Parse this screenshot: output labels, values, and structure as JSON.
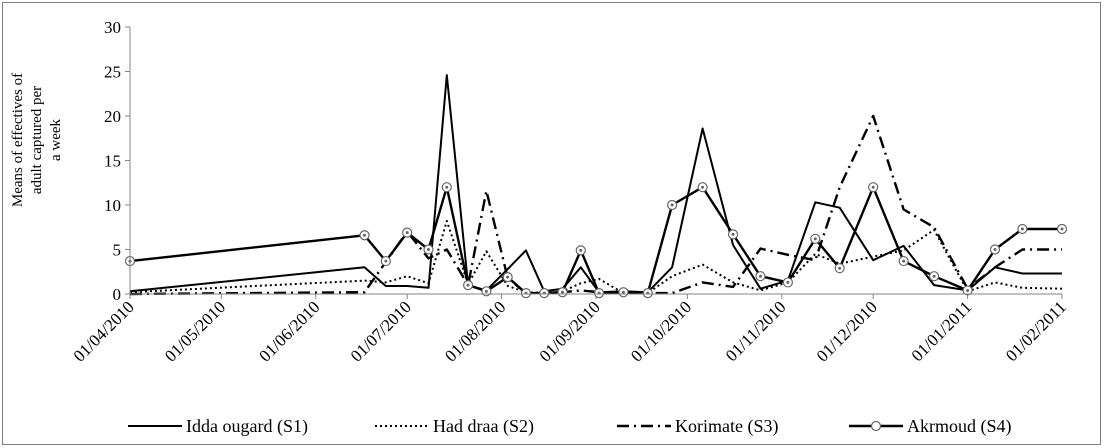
{
  "chart_data": {
    "type": "line",
    "ylabel_lines": [
      "Means of effectives of",
      "adult captured per",
      "a week"
    ],
    "ylim": [
      0,
      30
    ],
    "yticks": [
      0,
      5,
      10,
      15,
      20,
      25,
      30
    ],
    "xlim": [
      "2010-04-01",
      "2011-02-01"
    ],
    "xtick_labels": [
      "01/04/2010",
      "01/05/2010",
      "01/06/2010",
      "01/07/2010",
      "01/08/2010",
      "01/09/2010",
      "01/10/2010",
      "01/11/2010",
      "01/12/2010",
      "01/01/2011",
      "01/02/2011"
    ],
    "grid": false,
    "legend_position": "bottom",
    "series": [
      {
        "name": "Idda ougard (S1)",
        "style": "solid",
        "x": [
          "2010-04-01",
          "2010-06-17",
          "2010-06-24",
          "2010-07-01",
          "2010-07-08",
          "2010-07-14",
          "2010-07-21",
          "2010-07-27",
          "2010-08-03",
          "2010-08-09",
          "2010-08-15",
          "2010-08-21",
          "2010-08-27",
          "2010-09-02",
          "2010-09-10",
          "2010-09-18",
          "2010-09-26",
          "2010-10-06",
          "2010-10-16",
          "2010-10-25",
          "2010-11-03",
          "2010-11-12",
          "2010-11-20",
          "2010-12-01",
          "2010-12-11",
          "2010-12-21",
          "2011-01-01",
          "2011-01-10",
          "2011-01-19",
          "2011-02-01"
        ],
        "y": [
          0.3,
          3.0,
          0.9,
          0.9,
          0.7,
          24.6,
          1.0,
          0.4,
          2.8,
          4.9,
          0.3,
          0.6,
          3.0,
          0.2,
          0.3,
          0.2,
          3.0,
          18.6,
          5.5,
          0.6,
          1.5,
          10.3,
          9.7,
          3.8,
          5.4,
          1.0,
          0.4,
          3.0,
          2.3,
          2.3
        ]
      },
      {
        "name": "Had draa (S2)",
        "style": "dotted",
        "x": [
          "2010-04-01",
          "2010-06-17",
          "2010-06-24",
          "2010-07-01",
          "2010-07-08",
          "2010-07-14",
          "2010-07-21",
          "2010-07-27",
          "2010-08-03",
          "2010-08-09",
          "2010-08-15",
          "2010-08-21",
          "2010-08-27",
          "2010-09-02",
          "2010-09-10",
          "2010-09-18",
          "2010-09-26",
          "2010-10-06",
          "2010-10-16",
          "2010-10-25",
          "2010-11-03",
          "2010-11-12",
          "2010-11-20",
          "2010-12-01",
          "2010-12-11",
          "2010-12-21",
          "2011-01-01",
          "2011-01-10",
          "2011-01-19",
          "2011-02-01"
        ],
        "y": [
          0.2,
          1.5,
          1.3,
          2.0,
          1.2,
          8.2,
          1.1,
          4.8,
          0.9,
          0.2,
          0.1,
          0.3,
          1.2,
          1.7,
          0.1,
          0.1,
          2.0,
          3.3,
          1.3,
          0.4,
          1.3,
          4.5,
          3.4,
          4.2,
          4.9,
          7.2,
          0.3,
          1.3,
          0.7,
          0.6
        ]
      },
      {
        "name": "Korimate (S3)",
        "style": "dashdot",
        "x": [
          "2010-04-01",
          "2010-06-17",
          "2010-06-24",
          "2010-07-01",
          "2010-07-08",
          "2010-07-14",
          "2010-07-21",
          "2010-07-27",
          "2010-08-03",
          "2010-08-09",
          "2010-08-15",
          "2010-08-21",
          "2010-08-27",
          "2010-09-02",
          "2010-09-10",
          "2010-09-18",
          "2010-09-26",
          "2010-10-06",
          "2010-10-16",
          "2010-10-25",
          "2010-11-03",
          "2010-11-12",
          "2010-11-20",
          "2010-12-01",
          "2010-12-11",
          "2010-12-21",
          "2011-01-01",
          "2011-01-10",
          "2011-01-19",
          "2011-02-01"
        ],
        "y": [
          0.0,
          0.2,
          3.6,
          7.0,
          4.0,
          5.0,
          1.0,
          11.6,
          1.8,
          0.1,
          0.1,
          0.2,
          0.4,
          0.2,
          0.1,
          0.1,
          0.1,
          1.3,
          0.8,
          5.1,
          4.4,
          3.8,
          12.0,
          20.0,
          9.5,
          7.5,
          0.6,
          3.0,
          5.0,
          5.0
        ]
      },
      {
        "name": "Akrmoud (S4)",
        "style": "solid-marker",
        "x": [
          "2010-04-01",
          "2010-06-17",
          "2010-06-24",
          "2010-07-01",
          "2010-07-08",
          "2010-07-14",
          "2010-07-21",
          "2010-07-27",
          "2010-08-03",
          "2010-08-09",
          "2010-08-15",
          "2010-08-21",
          "2010-08-27",
          "2010-09-02",
          "2010-09-10",
          "2010-09-18",
          "2010-09-26",
          "2010-10-06",
          "2010-10-16",
          "2010-10-25",
          "2010-11-03",
          "2010-11-12",
          "2010-11-20",
          "2010-12-01",
          "2010-12-11",
          "2010-12-21",
          "2011-01-01",
          "2011-01-10",
          "2011-01-19",
          "2011-02-01"
        ],
        "y": [
          3.7,
          6.6,
          3.7,
          6.9,
          5.0,
          12.0,
          1.0,
          0.3,
          1.9,
          0.1,
          0.1,
          0.2,
          4.9,
          0.1,
          0.2,
          0.1,
          10.0,
          12.0,
          6.7,
          2.0,
          1.3,
          6.2,
          2.9,
          12.0,
          3.7,
          2.0,
          0.4,
          5.0,
          7.3,
          7.3
        ]
      }
    ]
  }
}
